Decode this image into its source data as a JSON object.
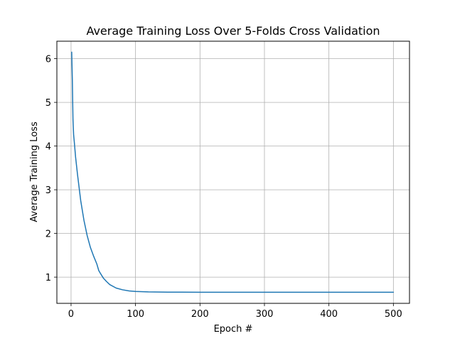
{
  "chart_data": {
    "type": "line",
    "title": "Average Training Loss Over 5-Folds Cross Validation",
    "xlabel": "Epoch #",
    "ylabel": "Average Training Loss",
    "xlim": [
      -22,
      525
    ],
    "ylim": [
      0.4,
      6.4
    ],
    "xticks": [
      0,
      100,
      200,
      300,
      400,
      500
    ],
    "yticks": [
      1,
      2,
      3,
      4,
      5,
      6
    ],
    "grid": true,
    "line_color": "#1f77b4",
    "grid_color": "#b0b0b0",
    "series": [
      {
        "name": "Average Training Loss",
        "x": [
          1,
          2,
          3,
          4,
          5,
          7,
          10,
          15,
          20,
          25,
          30,
          35,
          40,
          43,
          45,
          50,
          55,
          60,
          70,
          80,
          90,
          100,
          120,
          150,
          200,
          300,
          400,
          500
        ],
        "y": [
          6.15,
          5.5,
          4.6,
          4.25,
          4.1,
          3.75,
          3.35,
          2.75,
          2.3,
          1.95,
          1.68,
          1.48,
          1.3,
          1.15,
          1.1,
          0.98,
          0.9,
          0.83,
          0.75,
          0.71,
          0.685,
          0.672,
          0.662,
          0.657,
          0.655,
          0.655,
          0.655,
          0.655
        ]
      }
    ]
  }
}
